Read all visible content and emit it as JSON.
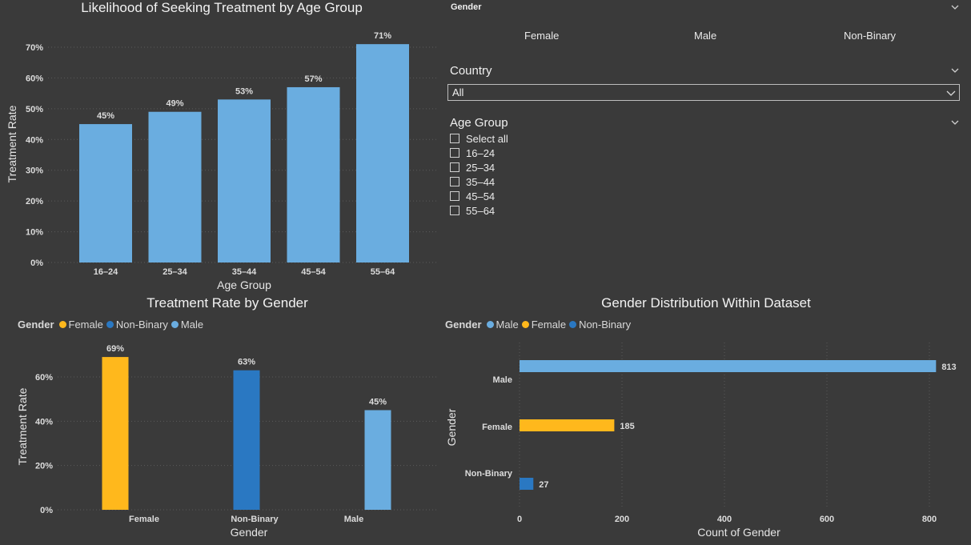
{
  "colors": {
    "background": "#3a3a3a",
    "bar_blue": "#6aade0",
    "female": "#ffb81c",
    "non_binary": "#2a78c2",
    "male": "#6aade0"
  },
  "slicers": {
    "gender": {
      "title": "Gender",
      "options": [
        "Female",
        "Male",
        "Non-Binary"
      ]
    },
    "country": {
      "title": "Country",
      "selected": "All"
    },
    "age_group": {
      "title": "Age Group",
      "options": [
        "Select all",
        "16–24",
        "25–34",
        "35–44",
        "45–54",
        "55–64"
      ]
    }
  },
  "legends": {
    "treatment_by_gender": {
      "title": "Gender",
      "items": [
        {
          "label": "Female",
          "color": "#ffb81c"
        },
        {
          "label": "Non-Binary",
          "color": "#2a78c2"
        },
        {
          "label": "Male",
          "color": "#6aade0"
        }
      ]
    },
    "gender_distribution": {
      "title": "Gender",
      "items": [
        {
          "label": "Male",
          "color": "#6aade0"
        },
        {
          "label": "Female",
          "color": "#ffb81c"
        },
        {
          "label": "Non-Binary",
          "color": "#2a78c2"
        }
      ]
    }
  },
  "chart_data": [
    {
      "type": "bar",
      "title": "Likelihood of Seeking Treatment by Age Group",
      "xlabel": "Age Group",
      "ylabel": "Treatment Rate",
      "categories": [
        "16–24",
        "25–34",
        "35–44",
        "45–54",
        "55–64"
      ],
      "values": [
        45,
        49,
        53,
        57,
        71
      ],
      "data_labels": [
        "45%",
        "49%",
        "53%",
        "57%",
        "71%"
      ],
      "yticks": [
        "0%",
        "10%",
        "20%",
        "30%",
        "40%",
        "50%",
        "60%",
        "70%"
      ],
      "ylim": [
        0,
        72
      ],
      "grid": true
    },
    {
      "type": "bar",
      "title": "Treatment Rate by Gender",
      "xlabel": "Gender",
      "ylabel": "Treatment Rate",
      "categories": [
        "Female",
        "Non-Binary",
        "Male"
      ],
      "values": [
        69,
        63,
        45
      ],
      "data_labels": [
        "69%",
        "63%",
        "45%"
      ],
      "colors": [
        "#ffb81c",
        "#2a78c2",
        "#6aade0"
      ],
      "yticks": [
        "0%",
        "20%",
        "40%",
        "60%"
      ],
      "ylim": [
        0,
        69
      ],
      "grid": true
    },
    {
      "type": "bar",
      "orientation": "horizontal",
      "title": "Gender Distribution Within Dataset",
      "xlabel": "Count of Gender",
      "ylabel": "Gender",
      "categories": [
        "Male",
        "Female",
        "Non-Binary"
      ],
      "values": [
        813,
        185,
        27
      ],
      "data_labels": [
        "813",
        "185",
        "27"
      ],
      "colors": [
        "#6aade0",
        "#ffb81c",
        "#2a78c2"
      ],
      "xticks": [
        "0",
        "200",
        "400",
        "600",
        "800"
      ],
      "xlim": [
        0,
        813
      ],
      "grid": true
    }
  ]
}
